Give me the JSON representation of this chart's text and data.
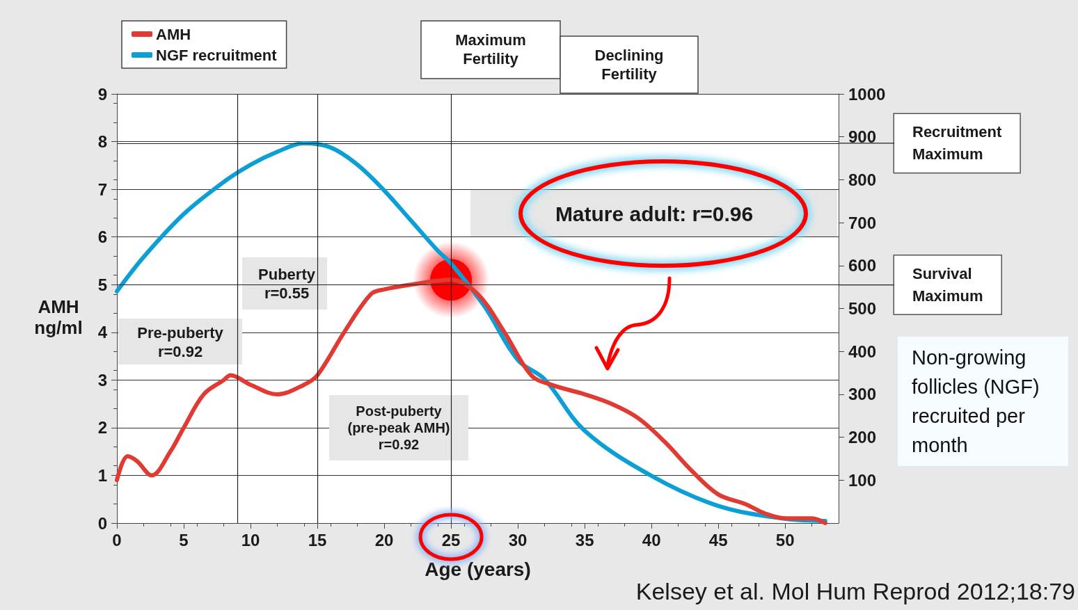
{
  "chart_data": {
    "type": "line",
    "xlabel": "Age (years)",
    "ylabel": "AMH\nng/ml",
    "y2label": "Non-growing\nfollicles (NGF)\nrecruited per\nmonth",
    "xlim": [
      0,
      54
    ],
    "xticks": [
      0,
      5,
      10,
      15,
      20,
      25,
      30,
      35,
      40,
      45,
      50
    ],
    "ylim": [
      0,
      9
    ],
    "yticks": [
      0,
      1,
      2,
      3,
      4,
      5,
      6,
      7,
      8,
      9
    ],
    "y2lim": [
      0,
      1000
    ],
    "y2ticks": [
      100,
      200,
      300,
      400,
      500,
      600,
      700,
      800,
      900,
      1000
    ],
    "grid": "y",
    "legend": "top left",
    "marker": "none",
    "line_style": "solid",
    "series": [
      {
        "name": "AMH",
        "color": "#e03a33",
        "x": [
          0,
          0.8,
          1.5,
          2.6,
          4,
          5,
          6.5,
          8,
          8.5,
          10,
          12,
          14,
          15,
          17,
          19,
          20,
          22,
          25,
          27,
          29,
          31,
          32.5,
          35,
          37,
          39,
          41,
          43,
          45,
          47,
          48.5,
          50,
          52,
          53
        ],
        "values": [
          0.9,
          1.4,
          1.3,
          1.0,
          1.5,
          2.0,
          2.7,
          3.0,
          3.1,
          2.9,
          2.7,
          2.9,
          3.1,
          4.0,
          4.8,
          4.9,
          5.0,
          5.1,
          4.8,
          4.0,
          3.1,
          2.9,
          2.7,
          2.5,
          2.2,
          1.7,
          1.1,
          0.6,
          0.4,
          0.2,
          0.1,
          0.1,
          0
        ]
      },
      {
        "name": "NGF recruitment",
        "color": "#0b9fd6",
        "axis": "y2",
        "x": [
          0,
          2,
          5,
          8,
          10,
          12,
          14,
          16,
          18,
          20,
          22,
          24,
          25,
          27.5,
          30,
          32,
          35,
          40,
          45,
          50,
          53
        ],
        "values": [
          540,
          620,
          720,
          795,
          835,
          865,
          885,
          875,
          835,
          775,
          705,
          635,
          605,
          505,
          380,
          335,
          215,
          110,
          40,
          10,
          5
        ]
      }
    ],
    "ref_lines": [
      {
        "axis": "x",
        "value": 9,
        "color": "#222222"
      },
      {
        "axis": "x",
        "value": 15,
        "color": "#222222"
      },
      {
        "axis": "x",
        "value": 25,
        "color": "#222222"
      },
      {
        "axis": "y2",
        "value": 885,
        "label": "Recruitment\nMaximum",
        "color": "#222222"
      },
      {
        "axis": "y2",
        "value": 555,
        "label": "Survival\nMaximum",
        "color": "#222222"
      }
    ],
    "annotations": [
      "Maximum\nFertility",
      "Declining\nFertility",
      "Pre-puberty\nr=0.92",
      "Puberty\nr=0.55",
      "Post-puberty\n(pre-peak AMH)\nr=0.92",
      "Mature adult: r=0.96",
      "Kelsey et al. Mol Hum Reprod 2012;18:79"
    ]
  }
}
